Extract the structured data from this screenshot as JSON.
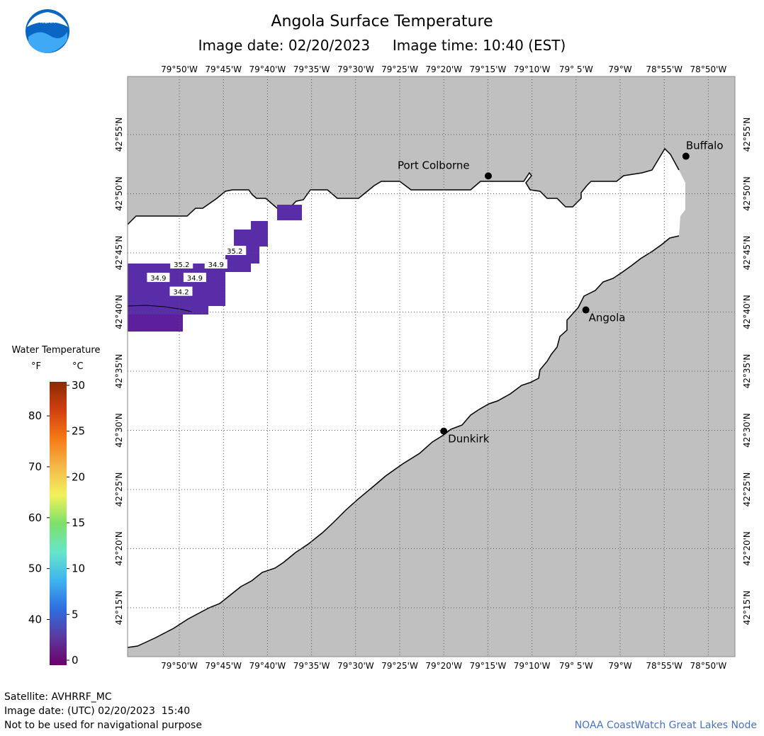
{
  "title": "Angola Surface Temperature",
  "subtitle": "Image date: 02/20/2023     Image time: 10:40 (EST)",
  "logo": {
    "text": "NOAA",
    "colors": [
      "#0a66c2",
      "#3fa9f5",
      "#ffffff"
    ]
  },
  "colors": {
    "land": "#c0c0c0",
    "water": "#ffffff",
    "coast": "#000000",
    "grid": "#555555",
    "credit": "#4472c4"
  },
  "longitude_labels": [
    "79°50'W",
    "79°45'W",
    "79°40'W",
    "79°35'W",
    "79°30'W",
    "79°25'W",
    "79°20'W",
    "79°15'W",
    "79°10'W",
    "79° 5'W",
    "79°W",
    "78°55'W",
    "78°50'W"
  ],
  "latitude_labels": [
    "42°55'N",
    "42°50'N",
    "42°45'N",
    "42°40'N",
    "42°35'N",
    "42°30'N",
    "42°25'N",
    "42°20'N",
    "42°15'N"
  ],
  "cities": [
    {
      "name": "Port Colborne",
      "lat": 42.8584,
      "lon": -79.2492
    },
    {
      "name": "Buffalo",
      "lat": 42.8862,
      "lon": -78.8756
    },
    {
      "name": "Angola",
      "lat": 42.6696,
      "lon": -79.0648
    },
    {
      "name": "Dunkirk",
      "lat": 42.4989,
      "lon": -79.3334
    }
  ],
  "temperature_labels": [
    {
      "text": "35.2",
      "lat": 42.753,
      "lon": -79.7285
    },
    {
      "text": "35.2",
      "lat": 42.734,
      "lon": -79.829
    },
    {
      "text": "34.9",
      "lat": 42.734,
      "lon": -79.764
    },
    {
      "text": "34.9",
      "lat": 42.715,
      "lon": -79.873
    },
    {
      "text": "34.9",
      "lat": 42.715,
      "lon": -79.804
    },
    {
      "text": "34.2",
      "lat": 42.6955,
      "lon": -79.83
    }
  ],
  "legend": {
    "title": "Water Temperature",
    "unit_f": "°F",
    "unit_c": "°C",
    "fahrenheit_ticks": [
      "80",
      "70",
      "60",
      "50",
      "40"
    ],
    "celsius_ticks": [
      "30",
      "25",
      "20",
      "15",
      "10",
      "5",
      "0"
    ],
    "fahrenheit_values": [
      80,
      70,
      60,
      50,
      40
    ],
    "celsius_values": [
      30,
      25,
      20,
      15,
      10,
      5,
      0
    ],
    "colors": [
      "#6b006b",
      "#5a3aa0",
      "#2e6fe0",
      "#3fb4f0",
      "#66e6c8",
      "#7ee06a",
      "#f2f25a",
      "#f5b84a",
      "#f57a14",
      "#d24010",
      "#8a2a00"
    ]
  },
  "footer": {
    "satellite": "Satellite: AVHRRF_MC",
    "utc": "Image date: (UTC) 02/20/2023  15:40",
    "nav": "Not to be used for navigational purpose",
    "credit": "NOAA CoastWatch Great Lakes Node"
  }
}
